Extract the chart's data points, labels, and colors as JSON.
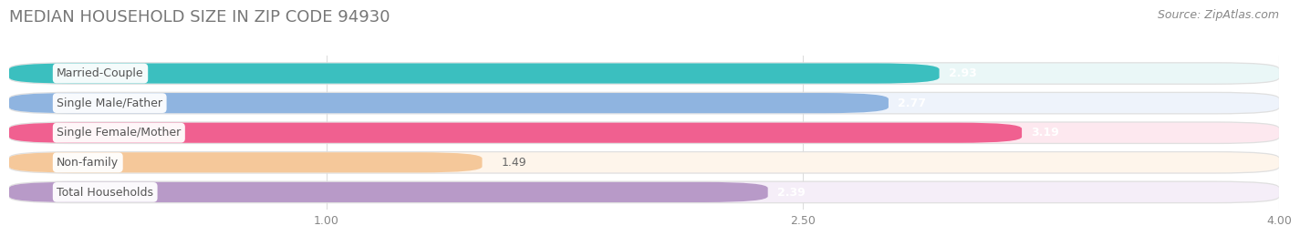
{
  "title": "MEDIAN HOUSEHOLD SIZE IN ZIP CODE 94930",
  "source": "Source: ZipAtlas.com",
  "categories": [
    "Married-Couple",
    "Single Male/Father",
    "Single Female/Mother",
    "Non-family",
    "Total Households"
  ],
  "values": [
    2.93,
    2.77,
    3.19,
    1.49,
    2.39
  ],
  "bar_colors": [
    "#3bbfbf",
    "#8fb4e0",
    "#f06090",
    "#f5c89a",
    "#b89ac8"
  ],
  "bar_bg_colors": [
    "#eaf7f7",
    "#eef3fb",
    "#fde8ef",
    "#fef5eb",
    "#f5eef8"
  ],
  "xlim": [
    0,
    4.0
  ],
  "xticks": [
    1.0,
    2.5,
    4.0
  ],
  "xticklabels": [
    "1.00",
    "2.50",
    "4.00"
  ],
  "title_fontsize": 13,
  "source_fontsize": 9,
  "label_fontsize": 9,
  "value_fontsize": 9,
  "background_color": "#ffffff",
  "outer_bg_color": "#f0f0f0"
}
